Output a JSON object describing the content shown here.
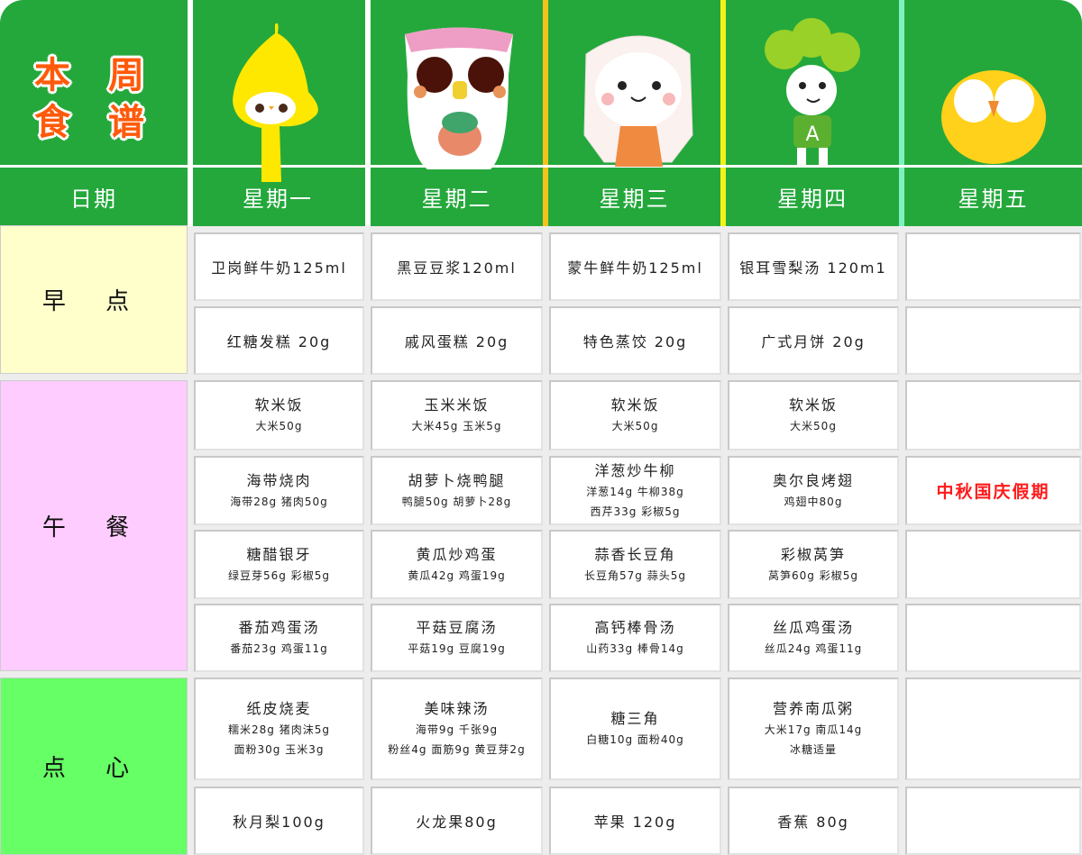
{
  "header": {
    "title_line1": "本 周",
    "title_line2": "食 谱",
    "date_label": "日期",
    "days": [
      "星期一",
      "星期二",
      "星期三",
      "星期四",
      "星期五"
    ],
    "characters": [
      "pear-character",
      "owl-character",
      "bunny-character",
      "broccoli-character",
      "chick-character"
    ]
  },
  "colors": {
    "header_green": "#24a83c",
    "breakfast_bg": "#ffffcc",
    "lunch_bg": "#ffccff",
    "snack_bg": "#66ff66",
    "holiday_red": "#ff1a1a",
    "title_orange": "#ff5a0a"
  },
  "categories": [
    {
      "label": "早 点",
      "rows": [
        [
          {
            "dish": "卫岗鲜牛奶125ml"
          },
          {
            "dish": "黑豆豆浆120ml"
          },
          {
            "dish": "蒙牛鲜牛奶125ml"
          },
          {
            "dish": "银耳雪梨汤 120m1"
          },
          {}
        ],
        [
          {
            "dish": "红糖发糕 20g"
          },
          {
            "dish": "戚风蛋糕 20g"
          },
          {
            "dish": "特色蒸饺 20g"
          },
          {
            "dish": "广式月饼 20g"
          },
          {}
        ]
      ]
    },
    {
      "label": "午 餐",
      "rows": [
        [
          {
            "dish": "软米饭",
            "ing": [
              "大米50g"
            ]
          },
          {
            "dish": "玉米米饭",
            "ing": [
              "大米45g 玉米5g"
            ]
          },
          {
            "dish": "软米饭",
            "ing": [
              "大米50g"
            ]
          },
          {
            "dish": "软米饭",
            "ing": [
              "大米50g"
            ]
          },
          {}
        ],
        [
          {
            "dish": "海带烧肉",
            "ing": [
              "海带28g 猪肉50g"
            ]
          },
          {
            "dish": "胡萝卜烧鸭腿",
            "ing": [
              "鸭腿50g 胡萝卜28g"
            ]
          },
          {
            "dish": "洋葱炒牛柳",
            "ing": [
              "洋葱14g 牛柳38g",
              "西芹33g 彩椒5g"
            ]
          },
          {
            "dish": "奥尔良烤翅",
            "ing": [
              "鸡翅中80g"
            ]
          },
          {
            "holiday": "中秋国庆假期"
          }
        ],
        [
          {
            "dish": "糖醋银牙",
            "ing": [
              "绿豆芽56g 彩椒5g"
            ]
          },
          {
            "dish": "黄瓜炒鸡蛋",
            "ing": [
              "黄瓜42g 鸡蛋19g"
            ]
          },
          {
            "dish": "蒜香长豆角",
            "ing": [
              "长豆角57g 蒜头5g"
            ]
          },
          {
            "dish": "彩椒莴笋",
            "ing": [
              "莴笋60g 彩椒5g"
            ]
          },
          {}
        ],
        [
          {
            "dish": "番茄鸡蛋汤",
            "ing": [
              "番茄23g 鸡蛋11g"
            ]
          },
          {
            "dish": "平菇豆腐汤",
            "ing": [
              "平菇19g 豆腐19g"
            ]
          },
          {
            "dish": "高钙棒骨汤",
            "ing": [
              "山药33g 棒骨14g"
            ]
          },
          {
            "dish": "丝瓜鸡蛋汤",
            "ing": [
              "丝瓜24g 鸡蛋11g"
            ]
          },
          {}
        ]
      ]
    },
    {
      "label": "点 心",
      "rows": [
        [
          {
            "dish": "纸皮烧麦",
            "ing": [
              "糯米28g 猪肉沫5g",
              "面粉30g 玉米3g"
            ]
          },
          {
            "dish": "美味辣汤",
            "ing": [
              "海带9g 千张9g",
              "粉丝4g 面筋9g 黄豆芽2g"
            ]
          },
          {
            "dish": "糖三角",
            "ing": [
              "白糖10g 面粉40g"
            ]
          },
          {
            "dish": "营养南瓜粥",
            "ing": [
              "大米17g 南瓜14g",
              "冰糖适量"
            ]
          },
          {}
        ],
        [
          {
            "dish": "秋月梨100g"
          },
          {
            "dish": "火龙果80g"
          },
          {
            "dish": "苹果 120g"
          },
          {
            "dish": "香蕉 80g"
          },
          {}
        ]
      ]
    }
  ]
}
